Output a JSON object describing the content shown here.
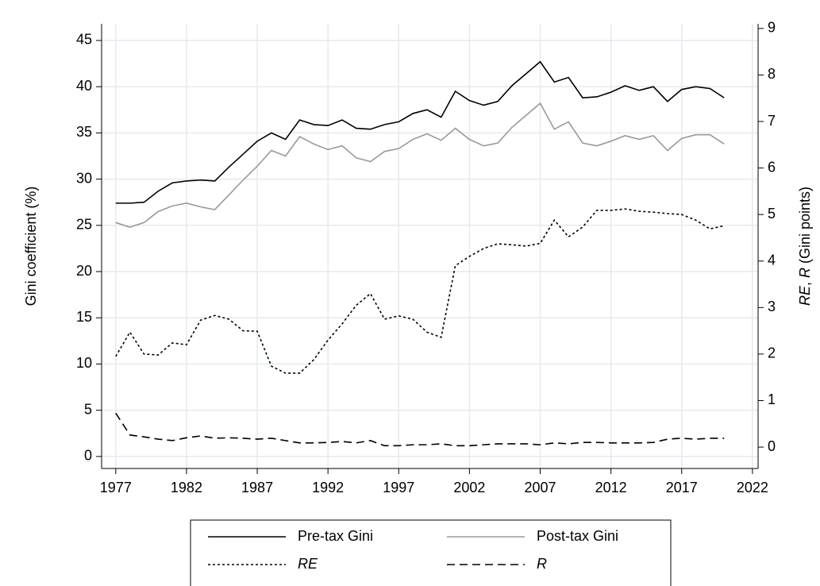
{
  "chart_data": {
    "type": "line",
    "ylabel": "Gini coefficient (%)",
    "y2label_parts": [
      {
        "text": "RE",
        "italic": true
      },
      {
        "text": ", ",
        "italic": false
      },
      {
        "text": "R",
        "italic": true
      },
      {
        "text": " (Gini points)",
        "italic": false
      }
    ],
    "x": [
      1977,
      1978,
      1979,
      1980,
      1981,
      1982,
      1983,
      1984,
      1985,
      1986,
      1987,
      1988,
      1989,
      1990,
      1991,
      1992,
      1993,
      1994,
      1995,
      1996,
      1997,
      1998,
      1999,
      2000,
      2001,
      2002,
      2003,
      2004,
      2005,
      2006,
      2007,
      2008,
      2009,
      2010,
      2011,
      2012,
      2013,
      2014,
      2015,
      2016,
      2017,
      2018,
      2019,
      2020
    ],
    "xlim": [
      1976,
      2022.4
    ],
    "xticks": [
      1977,
      1982,
      1987,
      1992,
      1997,
      2002,
      2007,
      2012,
      2017,
      2022
    ],
    "ylim": [
      -1.3,
      46.8
    ],
    "yticks": [
      0,
      5,
      10,
      15,
      20,
      25,
      30,
      35,
      40,
      45
    ],
    "y2lim": [
      -0.46,
      9.1
    ],
    "y2ticks": [
      0,
      1,
      2,
      3,
      4,
      5,
      6,
      7,
      8,
      9
    ],
    "grid": true,
    "legend": "bottom",
    "series": [
      {
        "name": "Pre-tax Gini",
        "color": "#000000",
        "style": "solid",
        "axis": "y",
        "italic": false,
        "values": [
          27.4,
          27.4,
          27.5,
          28.7,
          29.6,
          29.8,
          29.9,
          29.8,
          31.3,
          32.7,
          34.1,
          35.0,
          34.3,
          36.4,
          35.9,
          35.8,
          36.4,
          35.5,
          35.4,
          35.9,
          36.2,
          37.1,
          37.5,
          36.7,
          39.5,
          38.5,
          38.0,
          38.4,
          40.1,
          41.4,
          42.7,
          40.5,
          41.0,
          38.8,
          38.9,
          39.4,
          40.1,
          39.6,
          40.0,
          38.4,
          39.7,
          40.0,
          39.8,
          38.8
        ]
      },
      {
        "name": "Post-tax Gini",
        "color": "#999999",
        "style": "solid",
        "axis": "y",
        "italic": false,
        "values": [
          25.3,
          24.8,
          25.3,
          26.5,
          27.1,
          27.4,
          27.0,
          26.7,
          28.3,
          29.9,
          31.4,
          33.1,
          32.5,
          34.6,
          33.8,
          33.2,
          33.6,
          32.3,
          31.9,
          33.0,
          33.3,
          34.3,
          34.9,
          34.2,
          35.5,
          34.3,
          33.6,
          33.9,
          35.6,
          36.9,
          38.2,
          35.4,
          36.2,
          33.9,
          33.6,
          34.1,
          34.7,
          34.3,
          34.7,
          33.1,
          34.4,
          34.8,
          34.8,
          33.8
        ]
      },
      {
        "name": "RE",
        "color": "#000000",
        "style": "dotted",
        "axis": "y2",
        "italic": true,
        "values": [
          1.95,
          2.47,
          2.0,
          1.98,
          2.24,
          2.2,
          2.73,
          2.83,
          2.75,
          2.5,
          2.49,
          1.74,
          1.59,
          1.59,
          1.88,
          2.3,
          2.65,
          3.05,
          3.3,
          2.75,
          2.82,
          2.75,
          2.47,
          2.36,
          3.9,
          4.1,
          4.27,
          4.37,
          4.35,
          4.32,
          4.38,
          4.88,
          4.52,
          4.73,
          5.09,
          5.09,
          5.12,
          5.07,
          5.05,
          5.02,
          5.0,
          4.88,
          4.69,
          4.76
        ]
      },
      {
        "name": "R",
        "color": "#000000",
        "style": "dashed",
        "axis": "y2",
        "italic": true,
        "values": [
          0.73,
          0.26,
          0.22,
          0.17,
          0.14,
          0.2,
          0.24,
          0.19,
          0.2,
          0.19,
          0.17,
          0.19,
          0.14,
          0.09,
          0.09,
          0.1,
          0.12,
          0.09,
          0.14,
          0.03,
          0.03,
          0.05,
          0.05,
          0.07,
          0.03,
          0.03,
          0.05,
          0.07,
          0.07,
          0.07,
          0.05,
          0.09,
          0.07,
          0.1,
          0.1,
          0.09,
          0.09,
          0.09,
          0.1,
          0.17,
          0.19,
          0.17,
          0.19,
          0.19
        ]
      }
    ]
  }
}
